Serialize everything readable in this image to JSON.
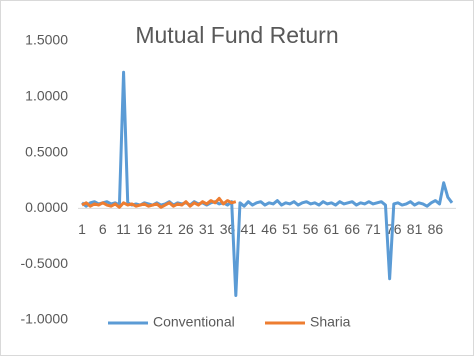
{
  "chart_data": {
    "type": "line",
    "title": "Mutual Fund Return",
    "categories": [
      "1",
      null,
      null,
      null,
      null,
      "6",
      null,
      null,
      null,
      null,
      "11",
      null,
      null,
      null,
      null,
      "16",
      null,
      null,
      null,
      null,
      "21",
      null,
      null,
      null,
      null,
      "26",
      null,
      null,
      null,
      null,
      "31",
      null,
      null,
      null,
      null,
      "36",
      null,
      null,
      null,
      null,
      "41",
      null,
      null,
      null,
      null,
      "46",
      null,
      null,
      null,
      null,
      "51",
      null,
      null,
      null,
      null,
      "56",
      null,
      null,
      null,
      null,
      "61",
      null,
      null,
      null,
      null,
      "66",
      null,
      null,
      null,
      null,
      "71",
      null,
      null,
      null,
      null,
      "76",
      null,
      null,
      null,
      null,
      "81",
      null,
      null,
      null,
      null,
      "86",
      null,
      null,
      null,
      null
    ],
    "series": [
      {
        "name": "Conventional",
        "color": "#5b9bd5",
        "values": [
          0.05,
          0.02,
          0.05,
          0.06,
          0.04,
          0.05,
          0.06,
          0.04,
          0.05,
          0.03,
          1.22,
          0.05,
          0.03,
          0.04,
          0.03,
          0.05,
          0.04,
          0.03,
          0.05,
          0.03,
          0.04,
          0.06,
          0.03,
          0.05,
          0.04,
          0.05,
          0.03,
          0.06,
          0.04,
          0.05,
          0.03,
          0.05,
          0.06,
          0.04,
          0.05,
          0.03,
          0.06,
          -0.78,
          0.05,
          0.02,
          0.06,
          0.03,
          0.05,
          0.06,
          0.03,
          0.05,
          0.04,
          0.07,
          0.03,
          0.05,
          0.04,
          0.06,
          0.03,
          0.05,
          0.06,
          0.04,
          0.05,
          0.03,
          0.06,
          0.04,
          0.05,
          0.03,
          0.06,
          0.04,
          0.05,
          0.06,
          0.03,
          0.05,
          0.04,
          0.06,
          0.04,
          0.05,
          0.06,
          0.03,
          -0.63,
          0.04,
          0.05,
          0.03,
          0.04,
          0.06,
          0.03,
          0.05,
          0.04,
          0.02,
          0.05,
          0.07,
          0.04,
          0.23,
          0.1,
          0.05
        ]
      },
      {
        "name": "Sharia",
        "color": "#ed7d31",
        "values": [
          0.03,
          0.05,
          0.02,
          0.04,
          0.03,
          0.05,
          0.03,
          0.02,
          0.04,
          0.01,
          0.05,
          0.03,
          0.04,
          0.02,
          0.03,
          0.04,
          0.02,
          0.03,
          0.04,
          0.01,
          0.03,
          0.05,
          0.02,
          0.04,
          0.03,
          0.06,
          0.02,
          0.05,
          0.03,
          0.06,
          0.04,
          0.07,
          0.05,
          0.09,
          0.04,
          0.07,
          0.05,
          0.06,
          null,
          null,
          null,
          null,
          null,
          null,
          null,
          null,
          null,
          null,
          null,
          null,
          null,
          null,
          null,
          null,
          null,
          null,
          null,
          null,
          null,
          null,
          null,
          null,
          null,
          null,
          null,
          null,
          null,
          null,
          null,
          null,
          null,
          null,
          null,
          null,
          null,
          null,
          null,
          null,
          null,
          null,
          null,
          null,
          null,
          null,
          null,
          null,
          null,
          null,
          null,
          null
        ]
      }
    ],
    "ylim": [
      -1.0,
      1.5
    ],
    "yticks": [
      {
        "value": 1.5,
        "label": "1.5000"
      },
      {
        "value": 1.0,
        "label": "1.0000"
      },
      {
        "value": 0.5,
        "label": "0.5000"
      },
      {
        "value": 0,
        "label": "0.0000"
      },
      {
        "value": -0.5,
        "label": "-0.5000"
      },
      {
        "value": -1.0,
        "label": "-1.0000"
      }
    ]
  }
}
